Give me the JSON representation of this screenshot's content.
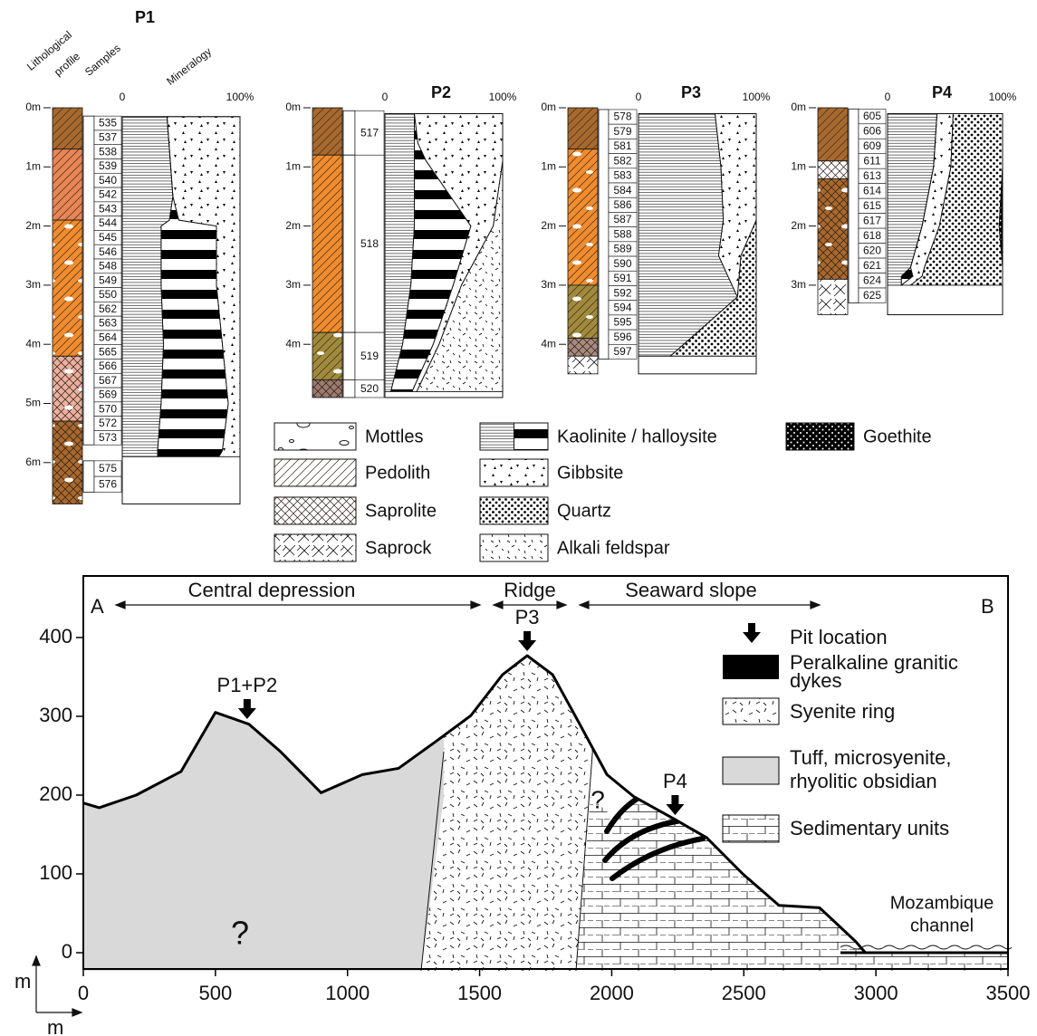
{
  "figure_top": {
    "column_headers": {
      "lithological": [
        "Lithological",
        "profile"
      ],
      "samples": "Samples",
      "mineralogy": "Mineralogy"
    },
    "profiles": [
      {
        "title": "P1",
        "mineral_ticks": [
          0,
          {
            "value": 100,
            "label": "100%"
          }
        ],
        "depth_ticks": [
          {
            "value": 0,
            "label": "0m"
          },
          {
            "value": 1,
            "label": "1m"
          },
          {
            "value": 2,
            "label": "2m"
          },
          {
            "value": 3,
            "label": "3m"
          },
          {
            "value": 4,
            "label": "4m"
          },
          {
            "value": 5,
            "label": "5m"
          },
          {
            "value": 6,
            "label": "6m"
          }
        ],
        "lithology": [
          {
            "top": 0,
            "bottom": 0.7,
            "color": "#a8692e",
            "pattern": "diag"
          },
          {
            "top": 0.7,
            "bottom": 1.9,
            "color": "#e98556",
            "pattern": "diag"
          },
          {
            "top": 1.9,
            "bottom": 4.2,
            "color": "#f08c2e",
            "pattern": "diag",
            "mottles": true
          },
          {
            "top": 4.2,
            "bottom": 5.3,
            "color": "#eab0a0",
            "pattern": "cross",
            "mottles": true
          },
          {
            "top": 5.3,
            "bottom": 6.7,
            "color": "#a8692e",
            "pattern": "cross",
            "mottles": true
          }
        ],
        "samples": [
          {
            "top": 0.14,
            "bottom": 5.7,
            "ids": [
              "535",
              "537",
              "538",
              "539",
              "540",
              "542",
              "543",
              "544",
              "545",
              "546",
              "548",
              "549",
              "550",
              "562",
              "563",
              "564",
              "565",
              "566",
              "567",
              "569",
              "570",
              "572",
              "573"
            ]
          },
          {
            "top": 5.97,
            "bottom": 6.5,
            "ids": [
              "575",
              "576"
            ]
          }
        ],
        "mineralogy": {
          "depth": [
            0.15,
            1.5,
            1.9,
            2.0,
            3.0,
            4.0,
            5.0,
            5.8,
            5.9
          ],
          "kaolinite": [
            38,
            43,
            40,
            33,
            33,
            35,
            33,
            30,
            30
          ],
          "halloysite": [
            0,
            0,
            8,
            47,
            47,
            50,
            57,
            55,
            52
          ],
          "gibbsite": [
            62,
            57,
            52,
            20,
            20,
            15,
            10,
            15,
            18
          ]
        }
      },
      {
        "title": "P2",
        "mineral_ticks": [
          0,
          {
            "value": 100,
            "label": "100%"
          }
        ],
        "depth_ticks": [
          {
            "value": 0,
            "label": "0m"
          },
          {
            "value": 1,
            "label": "1m"
          },
          {
            "value": 2,
            "label": "2m"
          },
          {
            "value": 3,
            "label": "3m"
          },
          {
            "value": 4,
            "label": "4m"
          }
        ],
        "lithology": [
          {
            "top": 0,
            "bottom": 0.8,
            "color": "#a8692e",
            "pattern": "diag"
          },
          {
            "top": 0.8,
            "bottom": 3.8,
            "color": "#f08c2e",
            "pattern": "diag"
          },
          {
            "top": 3.8,
            "bottom": 4.6,
            "color": "#a08a3c",
            "pattern": "diag",
            "mottles": true
          },
          {
            "top": 4.6,
            "bottom": 4.9,
            "color": "#9b7b70",
            "pattern": "cross"
          }
        ],
        "samples": [
          {
            "top": 0.05,
            "bottom": 0.8,
            "ids": [
              "517"
            ]
          },
          {
            "top": 0.8,
            "bottom": 3.8,
            "ids": [
              "518"
            ]
          },
          {
            "top": 3.8,
            "bottom": 4.6,
            "ids": [
              "519"
            ]
          },
          {
            "top": 4.6,
            "bottom": 4.9,
            "ids": [
              "520"
            ]
          }
        ],
        "mineralogy": {
          "depth": [
            0.1,
            0.6,
            0.9,
            2.0,
            3.0,
            4.0,
            4.8
          ],
          "kaolinite": [
            25,
            25,
            25,
            25,
            22,
            15,
            5
          ],
          "halloysite": [
            0,
            3,
            10,
            48,
            36,
            26,
            18
          ],
          "gibbsite": [
            75,
            72,
            65,
            19,
            7,
            5,
            4
          ],
          "feldspar": [
            0,
            0,
            0,
            8,
            35,
            54,
            73
          ]
        }
      },
      {
        "title": "P3",
        "mineral_ticks": [
          0,
          {
            "value": 100,
            "label": "100%"
          }
        ],
        "depth_ticks": [
          {
            "value": 0,
            "label": "0m"
          },
          {
            "value": 1,
            "label": "1m"
          },
          {
            "value": 2,
            "label": "2m"
          },
          {
            "value": 3,
            "label": "3m"
          },
          {
            "value": 4,
            "label": "4m"
          }
        ],
        "lithology": [
          {
            "top": 0,
            "bottom": 0.7,
            "color": "#a8692e",
            "pattern": "diag"
          },
          {
            "top": 0.7,
            "bottom": 3.0,
            "color": "#f08c2e",
            "pattern": "diag",
            "mottles": true
          },
          {
            "top": 3.0,
            "bottom": 3.9,
            "color": "#a08a3c",
            "pattern": "diag",
            "mottles": true
          },
          {
            "top": 3.9,
            "bottom": 4.2,
            "color": "#a88a80",
            "pattern": "cross"
          },
          {
            "top": 4.2,
            "bottom": 4.5,
            "color": "#ffffff",
            "pattern": "saprock"
          }
        ],
        "samples": [
          {
            "top": 0.03,
            "bottom": 4.25,
            "ids": [
              "578",
              "579",
              "581",
              "582",
              "583",
              "584",
              "586",
              "587",
              "588",
              "589",
              "590",
              "591",
              "592",
              "594",
              "595",
              "596",
              "597"
            ]
          }
        ],
        "mineralogy": {
          "depth": [
            0.1,
            1.0,
            1.9,
            2.5,
            3.2,
            4.2
          ],
          "kaolinite": [
            65,
            70,
            72,
            68,
            84,
            27
          ],
          "gibbsite": [
            35,
            30,
            28,
            19,
            0,
            0
          ],
          "quartz": [
            0,
            0,
            0,
            13,
            16,
            73
          ]
        }
      },
      {
        "title": "P4",
        "mineral_ticks": [
          0,
          {
            "value": 100,
            "label": "100%"
          }
        ],
        "depth_ticks": [
          {
            "value": 0,
            "label": "0m"
          },
          {
            "value": 1,
            "label": "1m"
          },
          {
            "value": 2,
            "label": "2m"
          },
          {
            "value": 3,
            "label": "3m"
          }
        ],
        "lithology": [
          {
            "top": 0,
            "bottom": 0.9,
            "color": "#a8692e",
            "pattern": "diag"
          },
          {
            "top": 0.9,
            "bottom": 1.2,
            "color": "#ffffff",
            "pattern": "cross"
          },
          {
            "top": 1.2,
            "bottom": 2.9,
            "color": "#a8692e",
            "pattern": "cross",
            "mottles": true
          },
          {
            "top": 2.9,
            "bottom": 3.5,
            "color": "#ffffff",
            "pattern": "saprock"
          }
        ],
        "samples": [
          {
            "top": 0.02,
            "bottom": 3.3,
            "ids": [
              "605",
              "606",
              "609",
              "611",
              "613",
              "614",
              "615",
              "617",
              "618",
              "620",
              "621",
              "624",
              "625"
            ]
          }
        ],
        "mineralogy": {
          "depth": [
            0.1,
            1.0,
            2.0,
            2.7,
            2.85,
            3.0
          ],
          "kaolinite": [
            43,
            40,
            30,
            20,
            12,
            12
          ],
          "halloysite": [
            0,
            0,
            0,
            0,
            10,
            0
          ],
          "gibbsite": [
            14,
            15,
            15,
            12,
            8,
            8
          ],
          "quartz": [
            43,
            45,
            52,
            68,
            70,
            80
          ],
          "goethite": [
            0,
            0,
            3,
            0,
            0,
            0
          ]
        }
      }
    ],
    "legend": [
      {
        "label": "Mottles",
        "pattern": "mottles-legend"
      },
      {
        "label": "Pedolith",
        "pattern": "diag"
      },
      {
        "label": "Saprolite",
        "pattern": "cross"
      },
      {
        "label": "Saprock",
        "pattern": "saprock"
      },
      {
        "label": "Kaolinite / halloysite",
        "pattern": [
          "kaolinite",
          "halloysite"
        ]
      },
      {
        "label": "Gibbsite",
        "pattern": "gibbsite"
      },
      {
        "label": "Quartz",
        "pattern": "quartz"
      },
      {
        "label": "Alkali feldspar",
        "pattern": "feldspar"
      },
      {
        "label": "Goethite",
        "pattern": "goethite"
      }
    ]
  },
  "cross_section": {
    "end_labels": [
      "A",
      "B"
    ],
    "zones": [
      "Central depression",
      "Ridge",
      "Seaward slope"
    ],
    "xlim": [
      0,
      3500
    ],
    "ylim": [
      -20,
      480
    ],
    "xticks": [
      0,
      500,
      1000,
      1500,
      2000,
      2500,
      3000,
      3500
    ],
    "yticks": [
      0,
      100,
      200,
      300,
      400
    ],
    "x_unit": "m",
    "y_unit": "m",
    "topography": {
      "x": [
        0,
        60,
        200,
        370,
        500,
        627,
        747,
        900,
        1056,
        1193,
        1330,
        1467,
        1587,
        1680,
        1776,
        1879,
        1982,
        2084,
        2240,
        2359,
        2496,
        2633,
        2787,
        2924,
        2960,
        3500
      ],
      "values": [
        190,
        184,
        200,
        230,
        305,
        290,
        255,
        203,
        226,
        234,
        267,
        301,
        353,
        377,
        353,
        290,
        226,
        198,
        169,
        146,
        100,
        60,
        57,
        14,
        0,
        0
      ]
    },
    "pits": [
      {
        "label": "P1+P2",
        "x": 620
      },
      {
        "label": "P3",
        "x": 1680
      },
      {
        "label": "P4",
        "x": 2240
      }
    ],
    "unknown": [
      "?",
      "?"
    ],
    "sea_label": [
      "Mozambique",
      "channel"
    ],
    "legend": {
      "pit": "Pit location",
      "dykes": [
        "Peralkaline granitic",
        "dykes"
      ],
      "syenite": "Syenite ring",
      "tuff": [
        "Tuff, microsyenite,",
        "rhyolitic obsidian"
      ],
      "sediment": "Sedimentary units"
    }
  }
}
